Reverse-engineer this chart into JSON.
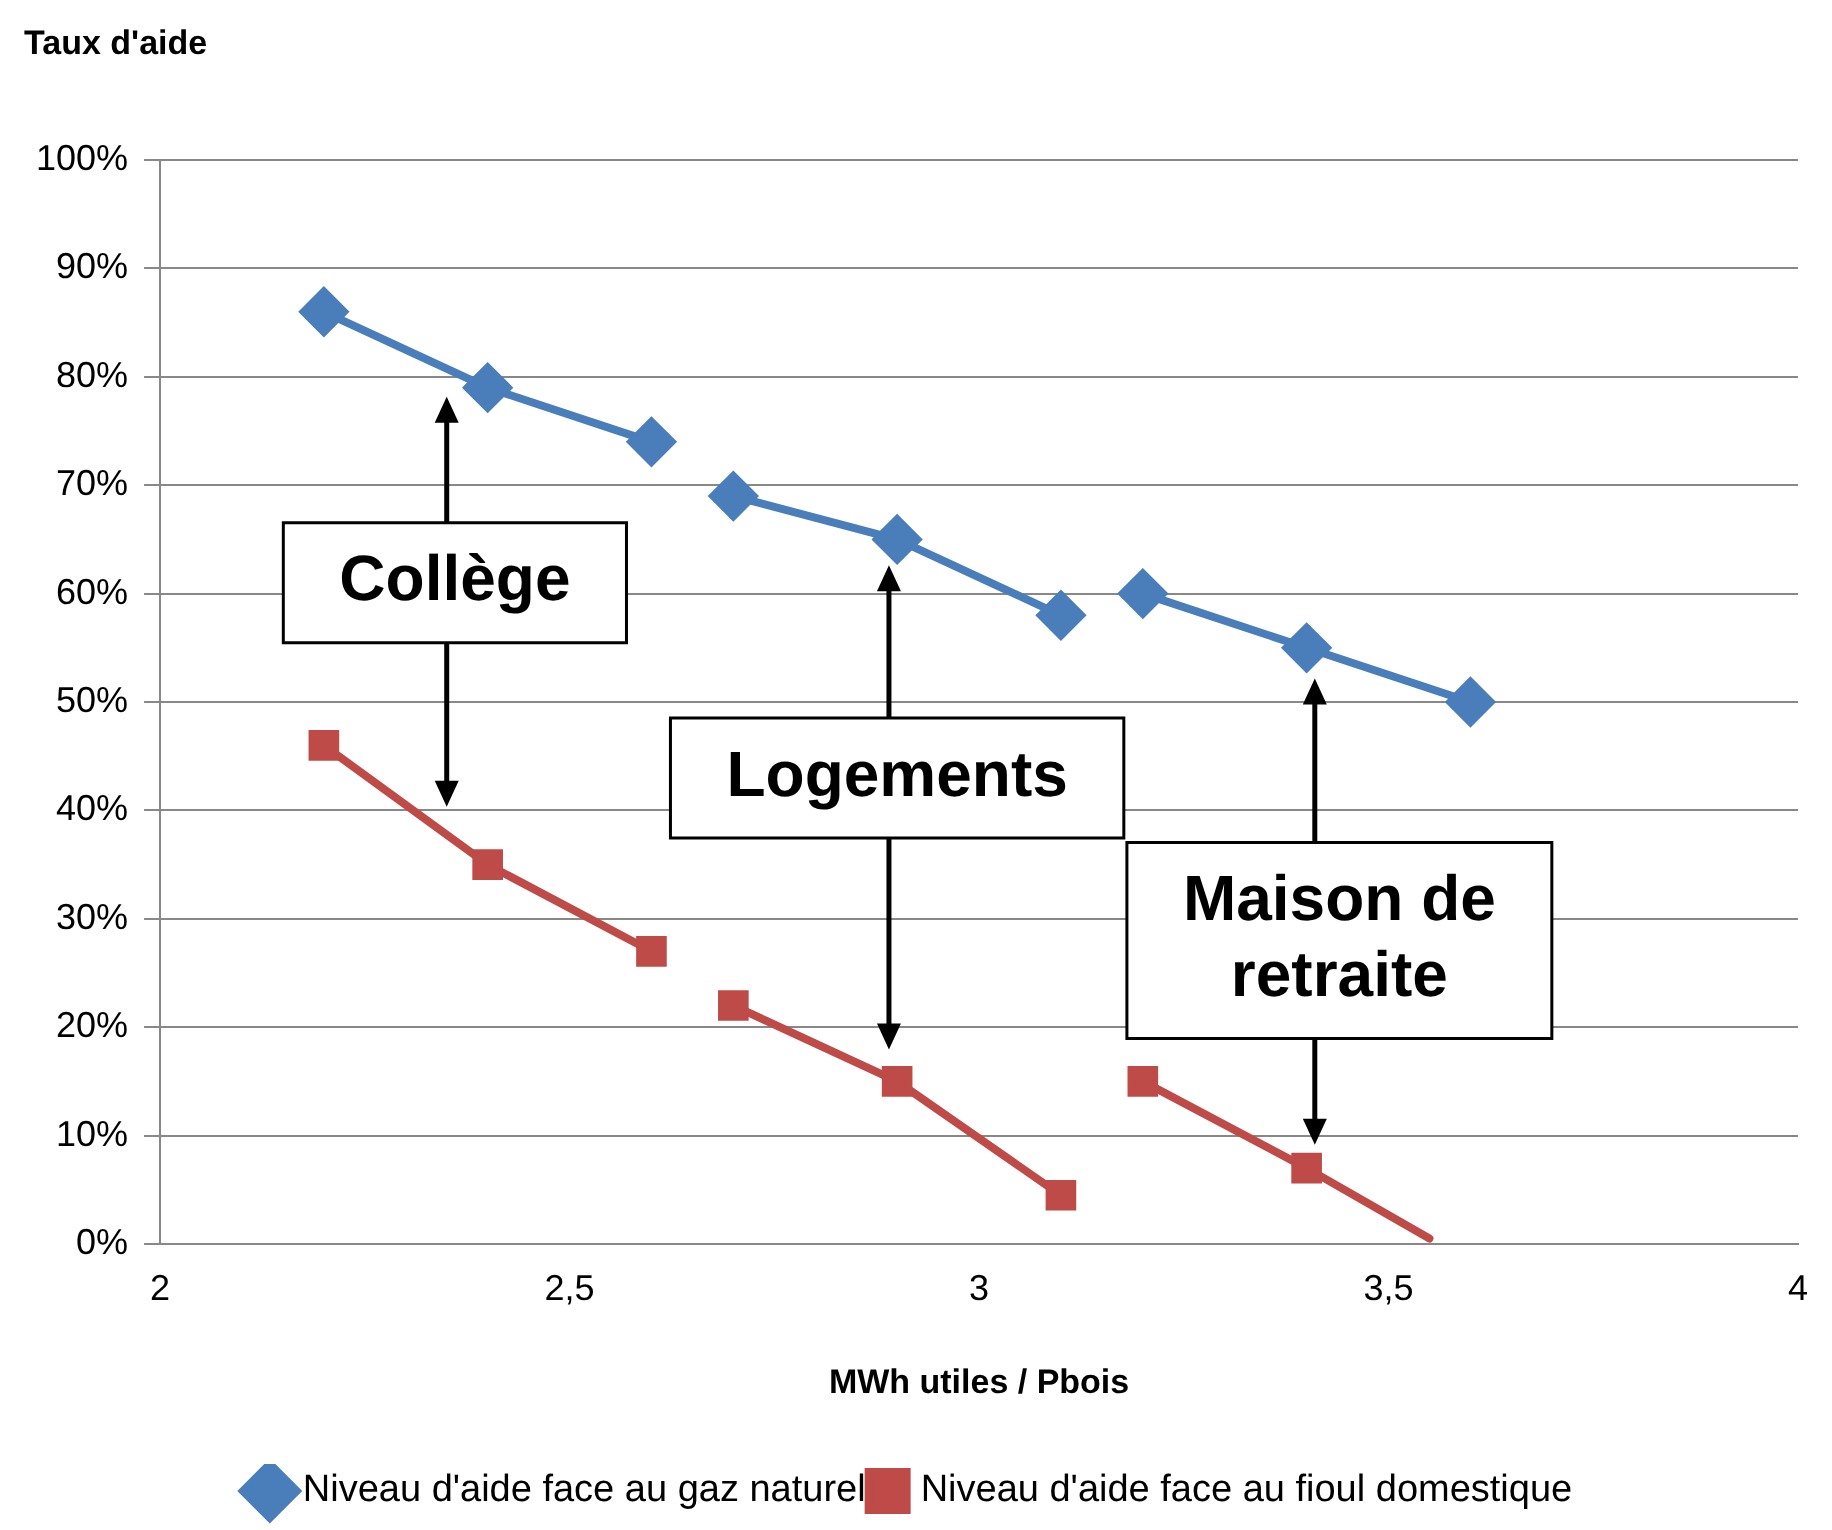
{
  "chart_data": {
    "type": "line",
    "ylabel": "Taux d'aide",
    "xlabel": "MWh utiles / Pbois",
    "xlim": [
      2,
      4
    ],
    "xticks": [
      2,
      {
        "value": 2.5,
        "label": "2,5"
      },
      3,
      {
        "value": 3.5,
        "label": "3,5"
      },
      4
    ],
    "ylim": [
      0,
      100
    ],
    "yticks": [
      {
        "value": 0,
        "label": "0%"
      },
      {
        "value": 10,
        "label": "10%"
      },
      {
        "value": 20,
        "label": "20%"
      },
      {
        "value": 30,
        "label": "30%"
      },
      {
        "value": 40,
        "label": "40%"
      },
      {
        "value": 50,
        "label": "50%"
      },
      {
        "value": 60,
        "label": "60%"
      },
      {
        "value": 70,
        "label": "70%"
      },
      {
        "value": 80,
        "label": "80%"
      },
      {
        "value": 90,
        "label": "90%"
      },
      {
        "value": 100,
        "label": "100%"
      }
    ],
    "grid": "y",
    "legend": "bottom",
    "series": [
      {
        "name": "Niveau d'aide face au gaz naturel",
        "color": "#4a7ebb",
        "marker": "diamond",
        "x": [
          2.2,
          2.4,
          2.6,
          2.65,
          2.7,
          2.9,
          3.1,
          3.15,
          3.2,
          3.4,
          3.6
        ],
        "values": [
          86,
          79,
          74,
          null,
          69,
          65,
          58,
          null,
          60,
          55,
          50
        ]
      },
      {
        "name": "Niveau d'aide face au fioul domestique",
        "color": "#be4b48",
        "marker": "square",
        "x": [
          2.2,
          2.4,
          2.6,
          2.65,
          2.7,
          2.9,
          3.1,
          3.15,
          3.2,
          3.4
        ],
        "values": [
          46,
          35,
          27,
          null,
          22,
          15,
          4.5,
          null,
          15,
          7
        ]
      },
      {
        "color": "#be4b48",
        "marker": "none",
        "x": [
          3.4,
          3.55
        ],
        "values": [
          7,
          0.5
        ]
      }
    ],
    "annotations": [
      "Collège",
      "Logements",
      "Maison de\nretraite"
    ]
  }
}
